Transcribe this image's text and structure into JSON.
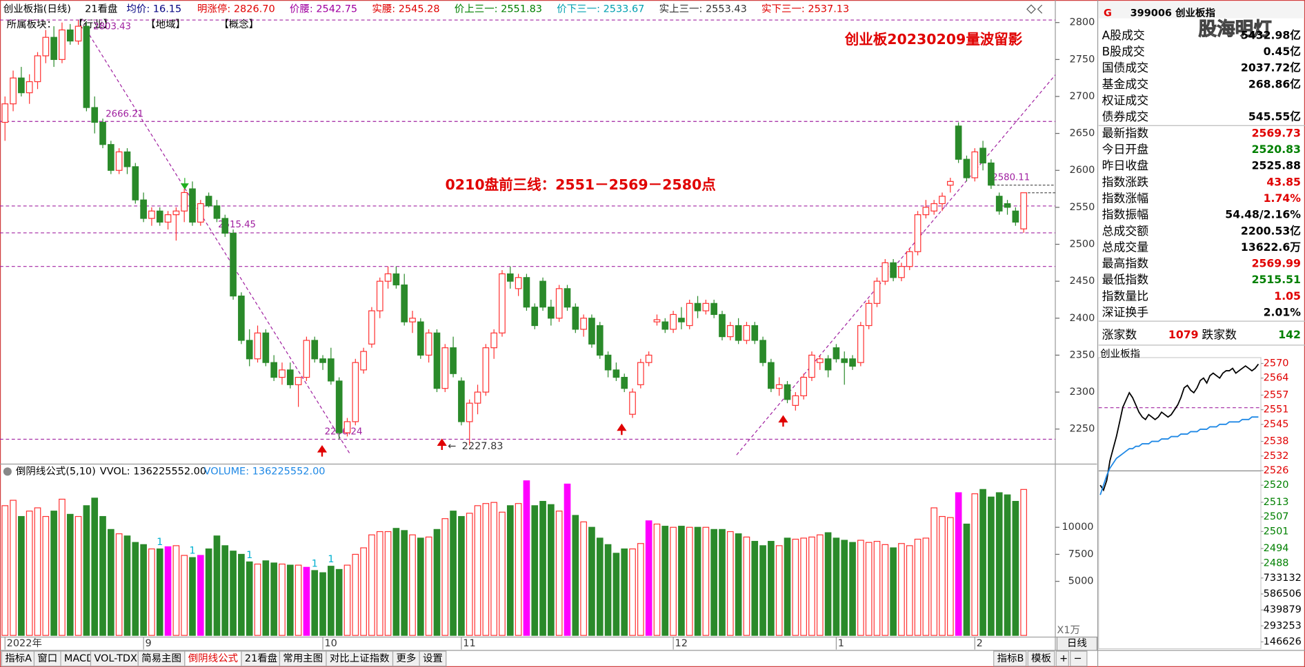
{
  "top_bar": {
    "items": [
      {
        "text": "创业板指(日线)",
        "color": "#000000"
      },
      {
        "text": "21看盘",
        "color": "#000000"
      },
      {
        "text": "均价: 16.15",
        "color": "#000080"
      },
      {
        "text": "明涨停: 2826.70",
        "color": "#e00000"
      },
      {
        "text": "价腰: 2542.75",
        "color": "#a000a0"
      },
      {
        "text": "实腰: 2545.28",
        "color": "#e00000"
      },
      {
        "text": "价上三一: 2551.83",
        "color": "#008000"
      },
      {
        "text": "价下三一: 2533.67",
        "color": "#00a0b0"
      },
      {
        "text": "实上三一: 2553.43",
        "color": "#333333"
      },
      {
        "text": "实下三一: 2537.13",
        "color": "#e00000"
      }
    ]
  },
  "chart_data": [
    {
      "type": "candlestick",
      "title": "创业板20230209量波留影",
      "note": "0210盘前三线：2551－2569－2580点",
      "sector_labels": [
        "所属板块：",
        "【行业】",
        "【地域】",
        "【概念】"
      ],
      "up_color": "#ff3030",
      "down_color": "#2a8a2a",
      "categories": [
        "2022年",
        null,
        null,
        null,
        null,
        null,
        null,
        null,
        null,
        null,
        null,
        null,
        null,
        null,
        null,
        null,
        null,
        "9",
        null,
        null,
        null,
        null,
        null,
        null,
        null,
        null,
        null,
        null,
        null,
        null,
        null,
        null,
        null,
        null,
        null,
        null,
        null,
        null,
        null,
        "10",
        null,
        null,
        null,
        null,
        null,
        null,
        null,
        null,
        null,
        null,
        null,
        null,
        null,
        null,
        null,
        null,
        "11",
        null,
        null,
        null,
        null,
        null,
        null,
        null,
        null,
        null,
        null,
        null,
        null,
        null,
        null,
        null,
        null,
        null,
        null,
        null,
        null,
        null,
        null,
        null,
        null,
        null,
        "12",
        null,
        null,
        null,
        null,
        null,
        null,
        null,
        null,
        null,
        null,
        null,
        null,
        null,
        null,
        null,
        null,
        null,
        null,
        null,
        "1",
        null,
        null,
        null,
        null,
        null,
        null,
        null,
        null,
        null,
        null,
        null,
        null,
        null,
        null,
        null,
        null,
        "2",
        null,
        null,
        null,
        null,
        null,
        null
      ],
      "ohlc": {
        "open": [
          2665,
          2690,
          2725,
          2705,
          2720,
          2755,
          2780,
          2750,
          2790,
          2775,
          2795,
          2685,
          2665,
          2635,
          2600,
          2625,
          2605,
          2560,
          2535,
          2545,
          2530,
          2540,
          2545,
          2575,
          2530,
          2565,
          2552,
          2535,
          2515,
          2430,
          2370,
          2345,
          2380,
          2340,
          2320,
          2330,
          2310,
          2320,
          2370,
          2345,
          2345,
          2315,
          2245,
          2260,
          2330,
          2365,
          2410,
          2450,
          2460,
          2445,
          2395,
          2395,
          2350,
          2380,
          2305,
          2360,
          2315,
          2260,
          2285,
          2300,
          2360,
          2380,
          2460,
          2440,
          2455,
          2415,
          2450,
          2415,
          2400,
          2440,
          2415,
          2385,
          2400,
          2390,
          2350,
          2330,
          2320,
          2270,
          2310,
          2340,
          2395,
          2395,
          2385,
          2400,
          2390,
          2420,
          2410,
          2420,
          2405,
          2375,
          2390,
          2370,
          2390,
          2370,
          2340,
          2305,
          2310,
          2282,
          2295,
          2320,
          2340,
          2345,
          2360,
          2345,
          2345,
          2340,
          2390,
          2420,
          2450,
          2475,
          2455,
          2470,
          2490,
          2540,
          2545,
          2555,
          2580,
          2660,
          2615,
          2590,
          2630,
          2610,
          2565,
          2555,
          2545,
          2520.83
        ],
        "high": [
          2700,
          2735,
          2740,
          2730,
          2760,
          2790,
          2795,
          2800,
          2798,
          2803.43,
          2800,
          2700,
          2670,
          2640,
          2630,
          2630,
          2610,
          2570,
          2550,
          2550,
          2545,
          2550,
          2575,
          2585,
          2560,
          2570,
          2560,
          2540,
          2520,
          2435,
          2385,
          2390,
          2385,
          2350,
          2340,
          2340,
          2320,
          2375,
          2375,
          2350,
          2360,
          2320,
          2265,
          2345,
          2360,
          2415,
          2455,
          2470,
          2470,
          2460,
          2410,
          2400,
          2385,
          2385,
          2365,
          2375,
          2320,
          2290,
          2310,
          2365,
          2385,
          2465,
          2470,
          2460,
          2460,
          2420,
          2455,
          2425,
          2445,
          2445,
          2420,
          2405,
          2405,
          2395,
          2355,
          2340,
          2325,
          2305,
          2345,
          2355,
          2405,
          2400,
          2410,
          2415,
          2425,
          2430,
          2425,
          2425,
          2410,
          2395,
          2400,
          2395,
          2395,
          2375,
          2345,
          2320,
          2315,
          2300,
          2325,
          2355,
          2350,
          2350,
          2365,
          2355,
          2350,
          2395,
          2425,
          2455,
          2480,
          2480,
          2475,
          2495,
          2545,
          2560,
          2560,
          2570,
          2590,
          2665,
          2620,
          2630,
          2640,
          2615,
          2570,
          2560,
          2550,
          2569.99
        ],
        "low": [
          2640,
          2680,
          2700,
          2690,
          2710,
          2745,
          2740,
          2745,
          2770,
          2770,
          2680,
          2650,
          2630,
          2595,
          2595,
          2595,
          2555,
          2530,
          2525,
          2525,
          2520,
          2505,
          2530,
          2525,
          2525,
          2550,
          2530,
          2510,
          2425,
          2365,
          2335,
          2340,
          2335,
          2315,
          2310,
          2305,
          2280,
          2315,
          2340,
          2330,
          2310,
          2236.24,
          2240,
          2255,
          2325,
          2360,
          2400,
          2440,
          2440,
          2390,
          2380,
          2345,
          2340,
          2300,
          2300,
          2320,
          2255,
          2227.83,
          2270,
          2295,
          2345,
          2375,
          2440,
          2430,
          2410,
          2385,
          2410,
          2390,
          2395,
          2410,
          2380,
          2375,
          2360,
          2345,
          2320,
          2315,
          2300,
          2265,
          2305,
          2335,
          2390,
          2380,
          2380,
          2385,
          2385,
          2400,
          2405,
          2400,
          2370,
          2370,
          2365,
          2365,
          2365,
          2335,
          2300,
          2295,
          2285,
          2275,
          2290,
          2315,
          2330,
          2320,
          2340,
          2310,
          2330,
          2335,
          2385,
          2415,
          2445,
          2450,
          2450,
          2465,
          2485,
          2535,
          2540,
          2545,
          2570,
          2610,
          2585,
          2585,
          2600,
          2575,
          2540,
          2540,
          2525,
          2515.51
        ],
        "close": [
          2690,
          2725,
          2705,
          2720,
          2755,
          2780,
          2750,
          2790,
          2775,
          2795,
          2685,
          2665,
          2635,
          2600,
          2625,
          2605,
          2560,
          2535,
          2545,
          2530,
          2540,
          2545,
          2570,
          2530,
          2555,
          2552,
          2535,
          2515,
          2430,
          2370,
          2345,
          2380,
          2340,
          2320,
          2330,
          2310,
          2320,
          2370,
          2345,
          2340,
          2315,
          2245,
          2260,
          2340,
          2355,
          2410,
          2450,
          2460,
          2445,
          2395,
          2400,
          2350,
          2380,
          2305,
          2360,
          2325,
          2260,
          2285,
          2300,
          2360,
          2380,
          2460,
          2450,
          2455,
          2415,
          2390,
          2415,
          2400,
          2440,
          2415,
          2385,
          2400,
          2365,
          2350,
          2330,
          2320,
          2305,
          2300,
          2340,
          2350,
          2398,
          2385,
          2405,
          2395,
          2420,
          2410,
          2420,
          2405,
          2375,
          2390,
          2370,
          2390,
          2370,
          2340,
          2305,
          2310,
          2290,
          2295,
          2320,
          2350,
          2345,
          2330,
          2345,
          2340,
          2335,
          2390,
          2420,
          2450,
          2475,
          2455,
          2470,
          2490,
          2540,
          2550,
          2555,
          2565,
          2585,
          2615,
          2590,
          2625,
          2610,
          2580,
          2545,
          2550,
          2530,
          2569.73
        ]
      },
      "ylim": [
        2206,
        2808
      ],
      "yticks": [
        2250,
        2300,
        2350,
        2400,
        2450,
        2500,
        2550,
        2600,
        2650,
        2700,
        2750,
        2800
      ],
      "labeled_levels": [
        2803.43,
        2666.21,
        2515.45,
        2236.24
      ],
      "plain_levels": [
        2551.83,
        2470
      ],
      "right_levels": [
        2580.11
      ],
      "right_plain_levels": [
        2569.73
      ],
      "level_color": "#a020a0",
      "low_label": {
        "arrow": "←",
        "value": 2227.83
      }
    },
    {
      "type": "bar",
      "title": "倒阴线公式(5,10)",
      "vvol": "VVOL: 136225552.00",
      "volume_label": "VOLUME: 136225552.00",
      "unit": "X1万",
      "values": [
        12000,
        12500,
        11000,
        11500,
        11800,
        11000,
        11500,
        12600,
        11200,
        11000,
        12000,
        12700,
        11000,
        9800,
        9400,
        9200,
        8600,
        8400,
        8000,
        8000,
        8200,
        8300,
        7400,
        7200,
        7400,
        8000,
        9200,
        8300,
        7800,
        7500,
        6800,
        6600,
        6900,
        6700,
        6600,
        6500,
        6500,
        6300,
        6000,
        5800,
        6400,
        6100,
        6500,
        7500,
        8100,
        9300,
        9600,
        9600,
        9900,
        9700,
        9300,
        9000,
        9100,
        9800,
        10800,
        11500,
        11000,
        11300,
        12000,
        12200,
        12300,
        11400,
        12000,
        12200,
        14300,
        12000,
        12400,
        12100,
        11500,
        14000,
        11100,
        10500,
        10000,
        9000,
        8400,
        7600,
        8000,
        8000,
        8500,
        10600,
        10300,
        10100,
        10000,
        10100,
        10000,
        10000,
        10000,
        9800,
        9800,
        9600,
        9400,
        9100,
        8700,
        8300,
        8700,
        8300,
        9000,
        8900,
        9000,
        9100,
        9300,
        9500,
        9000,
        8800,
        8600,
        8800,
        8600,
        8700,
        8400,
        8100,
        8500,
        8300,
        8900,
        9000,
        11800,
        11000,
        10900,
        13200,
        10300,
        13100,
        13500,
        12800,
        13200,
        13000,
        12400,
        13500
      ],
      "highlight": [
        20,
        24,
        37,
        64,
        69,
        79,
        117
      ],
      "highlight_color": "#ff00ff",
      "notes": {
        "text": "1",
        "bars": [
          19,
          23,
          30,
          38,
          40
        ],
        "color": "#00b0d0"
      },
      "ylim": [
        0,
        14540
      ],
      "yticks": [
        5000,
        7500,
        10000
      ]
    },
    {
      "type": "line",
      "title": "创业板指",
      "base": 2525.88,
      "level": 2551.83,
      "series": [
        {
          "color": "#000000",
          "values": [
            2520,
            2518,
            2522,
            2530,
            2535,
            2540,
            2546,
            2552,
            2555,
            2558,
            2556,
            2553,
            2550,
            2548,
            2547,
            2549,
            2548,
            2547,
            2548,
            2550,
            2549,
            2548,
            2549,
            2551,
            2553,
            2556,
            2560,
            2561,
            2559,
            2558,
            2560,
            2563,
            2564,
            2562,
            2565,
            2566,
            2565,
            2564,
            2566,
            2567,
            2567,
            2568,
            2566,
            2567,
            2568,
            2569,
            2568,
            2567,
            2568,
            2569.73
          ]
        },
        {
          "color": "#1e88e5",
          "values": [
            2516,
            2520,
            2524,
            2527,
            2529,
            2531,
            2532,
            2533,
            2534,
            2535,
            2535,
            2536,
            2536,
            2537,
            2537,
            2537,
            2538,
            2538,
            2538,
            2539,
            2539,
            2539,
            2540,
            2540,
            2540,
            2541,
            2541,
            2541,
            2542,
            2542,
            2542,
            2543,
            2543,
            2543,
            2544,
            2544,
            2544,
            2545,
            2545,
            2545,
            2546,
            2546,
            2546,
            2546,
            2547,
            2547,
            2547,
            2548,
            2548,
            2548
          ]
        }
      ],
      "ylim": [
        2483.6,
        2572.4
      ],
      "yticks": [
        2570,
        2564,
        2557,
        2551,
        2545,
        2538,
        2532,
        2526,
        2520,
        2513,
        2507,
        2501,
        2494,
        2488
      ],
      "vol_ylim": [
        0,
        771210
      ],
      "vol_ticks": [
        733132,
        586506,
        439879,
        293253,
        146626
      ]
    }
  ],
  "info_panel": {
    "badge": "G",
    "header": "399006 创业板指",
    "watermark": "股海明灯",
    "rows": [
      {
        "label": "A股成交",
        "value": "5432.98亿",
        "color": "#000000"
      },
      {
        "label": "B股成交",
        "value": "0.45亿",
        "color": "#000000"
      },
      {
        "label": "国债成交",
        "value": "2037.72亿",
        "color": "#000000"
      },
      {
        "label": "基金成交",
        "value": "268.86亿",
        "color": "#000000"
      },
      {
        "label": "权证成交"
      },
      {
        "label": "债券成交",
        "value": "545.55亿",
        "color": "#000000"
      },
      {
        "label": "最新指数",
        "value": "2569.73",
        "color": "#e00000"
      },
      {
        "label": "今日开盘",
        "value": "2520.83",
        "color": "#008000"
      },
      {
        "label": "昨日收盘",
        "value": "2525.88",
        "color": "#000000"
      },
      {
        "label": "指数涨跌",
        "value": "43.85",
        "color": "#e00000"
      },
      {
        "label": "指数涨幅",
        "value": "1.74%",
        "color": "#e00000"
      },
      {
        "label": "指数振幅",
        "value": "54.48/2.16%",
        "color": "#000000"
      },
      {
        "label": "总成交额",
        "value": "2200.53亿",
        "color": "#000000"
      },
      {
        "label": "总成交量",
        "value": "13622.6万",
        "color": "#000000"
      },
      {
        "label": "最高指数",
        "value": "2569.99",
        "color": "#e00000"
      },
      {
        "label": "最低指数",
        "value": "2515.51",
        "color": "#008000"
      },
      {
        "label": "指数量比",
        "value": "1.05",
        "color": "#e00000"
      },
      {
        "label": "深证换手",
        "value": "2.01%",
        "color": "#000000"
      }
    ],
    "breadth": {
      "up_label": "涨家数",
      "up": "1079",
      "down_label": "跌家数",
      "down": "142"
    },
    "period": "日线"
  },
  "tabs": {
    "left": [
      "指标A",
      "窗口",
      "MACD",
      "VOL-TDX",
      "简易主图",
      "倒阴线公式",
      "21看盘",
      "常用主图",
      "对比上证指数",
      "更多",
      "设置"
    ],
    "active": 5,
    "right": [
      "指标B",
      "模板",
      "+",
      "−"
    ]
  }
}
